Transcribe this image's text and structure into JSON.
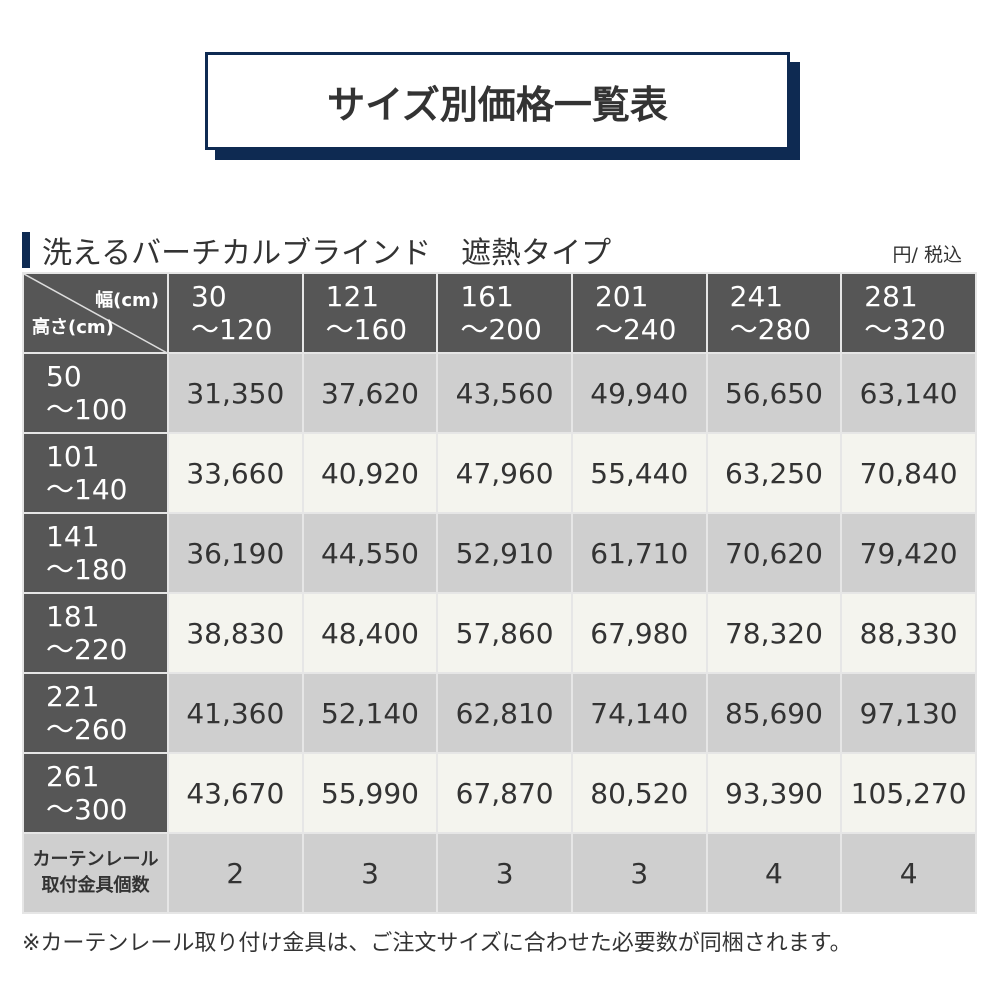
{
  "title": "サイズ別価格一覧表",
  "subtitle": "洗えるバーチカルブラインド　遮熱タイプ",
  "unit": "円/ 税込",
  "corner": {
    "width_label": "幅(cm)",
    "height_label": "高さ(cm)"
  },
  "columns": [
    [
      "30",
      "～120"
    ],
    [
      "121",
      "～160"
    ],
    [
      "161",
      "～200"
    ],
    [
      "201",
      "～240"
    ],
    [
      "241",
      "～280"
    ],
    [
      "281",
      "～320"
    ]
  ],
  "rows": [
    {
      "h": [
        "50",
        "～100"
      ],
      "prices": [
        "31,350",
        "37,620",
        "43,560",
        "49,940",
        "56,650",
        "63,140"
      ]
    },
    {
      "h": [
        "101",
        "～140"
      ],
      "prices": [
        "33,660",
        "40,920",
        "47,960",
        "55,440",
        "63,250",
        "70,840"
      ]
    },
    {
      "h": [
        "141",
        "～180"
      ],
      "prices": [
        "36,190",
        "44,550",
        "52,910",
        "61,710",
        "70,620",
        "79,420"
      ]
    },
    {
      "h": [
        "181",
        "～220"
      ],
      "prices": [
        "38,830",
        "48,400",
        "57,860",
        "67,980",
        "78,320",
        "88,330"
      ]
    },
    {
      "h": [
        "221",
        "～260"
      ],
      "prices": [
        "41,360",
        "52,140",
        "62,810",
        "74,140",
        "85,690",
        "97,130"
      ]
    },
    {
      "h": [
        "261",
        "～300"
      ],
      "prices": [
        "43,670",
        "55,990",
        "67,870",
        "80,520",
        "93,390",
        "105,270"
      ]
    }
  ],
  "brackets": {
    "label": [
      "カーテンレール",
      "取付金具個数"
    ],
    "counts": [
      "2",
      "3",
      "3",
      "3",
      "4",
      "4"
    ]
  },
  "note": "※カーテンレール取り付け金具は、ご注文サイズに合わせた必要数が同梱されます。"
}
